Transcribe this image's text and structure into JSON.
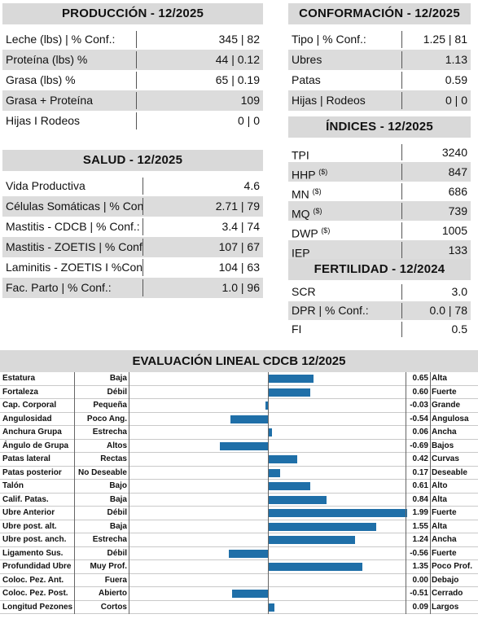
{
  "produccion": {
    "title": "PRODUCCIÓN - 12/2025",
    "rows": [
      {
        "label": "Leche (lbs) | % Conf.:",
        "value": "345 | 82"
      },
      {
        "label": "Proteína (lbs) %",
        "value": "44 | 0.12"
      },
      {
        "label": "Grasa (lbs) %",
        "value": "65 | 0.19"
      },
      {
        "label": "Grasa + Proteína",
        "value": "109"
      },
      {
        "label": "Hijas I Rodeos",
        "value": "0 | 0"
      }
    ]
  },
  "conformacion": {
    "title": "CONFORMACIÓN - 12/2025",
    "rows": [
      {
        "label": "Tipo | % Conf.:",
        "value": "1.25 | 81"
      },
      {
        "label": "Ubres",
        "value": "1.13"
      },
      {
        "label": "Patas",
        "value": "0.59"
      },
      {
        "label": "Hijas | Rodeos",
        "value": "0 | 0"
      }
    ]
  },
  "salud": {
    "title": "SALUD - 12/2025",
    "rows": [
      {
        "label": "Vida Productiva",
        "value": "4.6"
      },
      {
        "label": "Células Somáticas | % Conf.:",
        "value": "2.71 | 79"
      },
      {
        "label": "Mastitis - CDCB | % Conf.:",
        "value": "3.4 | 74"
      },
      {
        "label": "Mastitis - ZOETIS | % Conf.:",
        "value": "107 | 67"
      },
      {
        "label": "Laminitis - ZOETIS I %Conf.:",
        "value": "104 | 63"
      },
      {
        "label": "Fac. Parto | % Conf.:",
        "value": "1.0 | 96"
      }
    ]
  },
  "indices": {
    "title": "ÍNDICES - 12/2025",
    "rows": [
      {
        "label": "TPI",
        "sup": "",
        "value": "3240"
      },
      {
        "label": "HHP",
        "sup": "($)",
        "value": "847"
      },
      {
        "label": "MN",
        "sup": "($)",
        "value": "686"
      },
      {
        "label": "MQ",
        "sup": "($)",
        "value": "739"
      },
      {
        "label": "DWP",
        "sup": "($)",
        "value": "1005"
      },
      {
        "label": "IEP",
        "sup": "",
        "value": "133"
      }
    ]
  },
  "fertilidad": {
    "title": "FERTILIDAD - 12/2024",
    "rows": [
      {
        "label": "SCR",
        "value": "3.0"
      },
      {
        "label": "DPR | % Conf.:",
        "value": "0.0 | 78"
      },
      {
        "label": "FI",
        "value": "0.5"
      }
    ]
  },
  "lineal": {
    "title": "EVALUACIÓN LINEAL CDCB 12/2025",
    "bar_color": "#1f6fa8",
    "scale_max": 2.0,
    "rows": [
      {
        "trait": "Estatura",
        "neg": "Baja",
        "value": 0.65,
        "value_text": "0.65",
        "pos": "Alta"
      },
      {
        "trait": "Fortaleza",
        "neg": "Débil",
        "value": 0.6,
        "value_text": "0.60",
        "pos": "Fuerte"
      },
      {
        "trait": "Cap. Corporal",
        "neg": "Pequeña",
        "value": -0.03,
        "value_text": "-0.03",
        "pos": "Grande"
      },
      {
        "trait": "Angulosidad",
        "neg": "Poco Ang.",
        "value": -0.54,
        "value_text": "-0.54",
        "pos": "Angulosa"
      },
      {
        "trait": "Anchura Grupa",
        "neg": "Estrecha",
        "value": 0.06,
        "value_text": "0.06",
        "pos": "Ancha"
      },
      {
        "trait": "Ángulo de Grupa",
        "neg": "Altos",
        "value": -0.69,
        "value_text": "-0.69",
        "pos": "Bajos"
      },
      {
        "trait": "Patas lateral",
        "neg": "Rectas",
        "value": 0.42,
        "value_text": "0.42",
        "pos": "Curvas"
      },
      {
        "trait": "Patas posterior",
        "neg": "No Deseable",
        "value": 0.17,
        "value_text": "0.17",
        "pos": "Deseable"
      },
      {
        "trait": "Talón",
        "neg": "Bajo",
        "value": 0.61,
        "value_text": "0.61",
        "pos": "Alto"
      },
      {
        "trait": "Calif. Patas.",
        "neg": "Baja",
        "value": 0.84,
        "value_text": "0.84",
        "pos": "Alta"
      },
      {
        "trait": "Ubre Anterior",
        "neg": "Débil",
        "value": 1.99,
        "value_text": "1.99",
        "pos": "Fuerte"
      },
      {
        "trait": "Ubre post. alt.",
        "neg": "Baja",
        "value": 1.55,
        "value_text": "1.55",
        "pos": "Alta"
      },
      {
        "trait": "Ubre post. anch.",
        "neg": "Estrecha",
        "value": 1.24,
        "value_text": "1.24",
        "pos": "Ancha"
      },
      {
        "trait": "Ligamento Sus.",
        "neg": "Débil",
        "value": -0.56,
        "value_text": "-0.56",
        "pos": "Fuerte"
      },
      {
        "trait": "Profundidad Ubre",
        "neg": "Muy Prof.",
        "value": 1.35,
        "value_text": "1.35",
        "pos": "Poco Prof."
      },
      {
        "trait": "Coloc. Pez. Ant.",
        "neg": "Fuera",
        "value": 0.0,
        "value_text": "0.00",
        "pos": "Debajo"
      },
      {
        "trait": "Coloc. Pez. Post.",
        "neg": "Abierto",
        "value": -0.51,
        "value_text": "-0.51",
        "pos": "Cerrado"
      },
      {
        "trait": "Longitud Pezones",
        "neg": "Cortos",
        "value": 0.09,
        "value_text": "0.09",
        "pos": "Largos"
      }
    ]
  }
}
